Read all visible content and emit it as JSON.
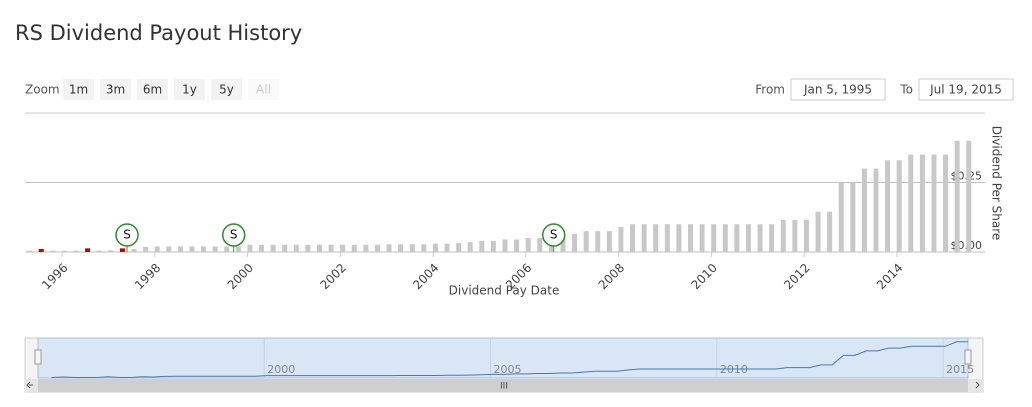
{
  "chart_data": {
    "type": "bar",
    "title": "RS Dividend Payout History",
    "zoom_label": "Zoom",
    "zoom_buttons": [
      "1m",
      "3m",
      "6m",
      "1y",
      "5y",
      "All"
    ],
    "from_label": "From",
    "from_value": "Jan 5, 1995",
    "to_label": "To",
    "to_value": "Jul 19, 2015",
    "x_label": "Dividend Pay Date",
    "y_label": "Dividend Per Share",
    "xlim": [
      1995.2,
      2015.9
    ],
    "xticks": [
      1996,
      1998,
      2000,
      2002,
      2004,
      2006,
      2008,
      2010,
      2012,
      2014
    ],
    "ylim": [
      0,
      0.5
    ],
    "yticks": [
      {
        "value": 0,
        "label": "$0.00"
      },
      {
        "value": 0.25,
        "label": "$0.25"
      }
    ],
    "grid": true,
    "color": "#c8c8c8",
    "drop_color": "#c00000",
    "x": [
      1995.3,
      1995.55,
      1995.8,
      1996.05,
      1996.3,
      1996.55,
      1996.8,
      1997.05,
      1997.3,
      1997.55,
      1997.8,
      1998.05,
      1998.3,
      1998.55,
      1998.8,
      1999.05,
      1999.3,
      1999.55,
      1999.8,
      2000.05,
      2000.3,
      2000.55,
      2000.8,
      2001.05,
      2001.3,
      2001.55,
      2001.8,
      2002.05,
      2002.3,
      2002.55,
      2002.8,
      2003.05,
      2003.3,
      2003.55,
      2003.8,
      2004.05,
      2004.3,
      2004.55,
      2004.8,
      2005.05,
      2005.3,
      2005.55,
      2005.8,
      2006.05,
      2006.3,
      2006.55,
      2006.8,
      2007.05,
      2007.3,
      2007.55,
      2007.8,
      2008.05,
      2008.3,
      2008.55,
      2008.8,
      2009.05,
      2009.3,
      2009.55,
      2009.8,
      2010.05,
      2010.3,
      2010.55,
      2010.8,
      2011.05,
      2011.3,
      2011.55,
      2011.8,
      2012.05,
      2012.3,
      2012.55,
      2012.8,
      2013.05,
      2013.3,
      2013.55,
      2013.8,
      2014.05,
      2014.3,
      2014.55,
      2014.8,
      2015.05,
      2015.3,
      2015.55
    ],
    "values": [
      0.005,
      0.011,
      0.005,
      0.005,
      0.005,
      0.013,
      0.005,
      0.006,
      0.013,
      0.011,
      0.018,
      0.02,
      0.02,
      0.02,
      0.02,
      0.02,
      0.02,
      0.02,
      0.02,
      0.026,
      0.026,
      0.026,
      0.026,
      0.026,
      0.026,
      0.026,
      0.026,
      0.026,
      0.026,
      0.026,
      0.026,
      0.028,
      0.028,
      0.028,
      0.028,
      0.03,
      0.03,
      0.032,
      0.035,
      0.04,
      0.04,
      0.045,
      0.045,
      0.05,
      0.05,
      0.055,
      0.055,
      0.065,
      0.075,
      0.075,
      0.075,
      0.09,
      0.1,
      0.1,
      0.1,
      0.1,
      0.1,
      0.1,
      0.1,
      0.1,
      0.1,
      0.1,
      0.1,
      0.1,
      0.1,
      0.115,
      0.115,
      0.115,
      0.145,
      0.145,
      0.25,
      0.25,
      0.3,
      0.3,
      0.33,
      0.33,
      0.35,
      0.35,
      0.35,
      0.35,
      0.4,
      0.4
    ],
    "splits": [
      {
        "x": 1997.4,
        "label": "S"
      },
      {
        "x": 1999.7,
        "label": "S"
      },
      {
        "x": 2006.6,
        "label": "S"
      }
    ],
    "navigator_xlim": [
      1995,
      2015.55
    ],
    "navigator_ylim": [
      0,
      0.42
    ],
    "navigator_ticks": [
      2000,
      2005,
      2010,
      2015
    ],
    "navigator_handle": "III"
  }
}
